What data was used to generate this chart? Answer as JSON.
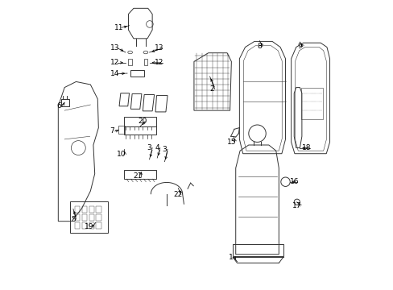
{
  "bg_color": "#ffffff",
  "line_color": "#333333",
  "label_color": "#000000",
  "fig_width": 4.89,
  "fig_height": 3.6,
  "dpi": 100
}
